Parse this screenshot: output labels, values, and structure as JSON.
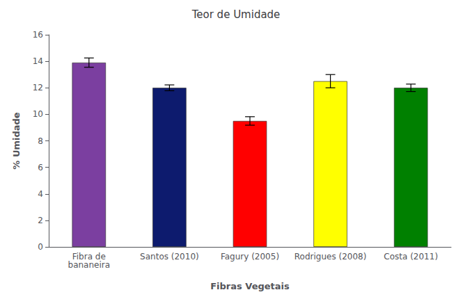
{
  "chart_data": {
    "type": "bar",
    "title": "Teor de Umidade",
    "xlabel": "Fibras Vegetais",
    "ylabel": "% Umidade",
    "categories": [
      "Fibra de\nbananeira",
      "Santos (2010)",
      "Fagury (2005)",
      "Rodrigues (2008)",
      "Costa (2011)"
    ],
    "values": [
      13.9,
      12.0,
      9.5,
      12.5,
      12.0
    ],
    "errors": [
      0.35,
      0.22,
      0.32,
      0.5,
      0.28
    ],
    "colors": [
      "#7B3FA0",
      "#0D1B6E",
      "#FF0000",
      "#FFFF00",
      "#008000"
    ],
    "ylim": [
      0,
      16
    ],
    "yticks": [
      0,
      2,
      4,
      6,
      8,
      10,
      12,
      14,
      16
    ],
    "grid": false
  }
}
